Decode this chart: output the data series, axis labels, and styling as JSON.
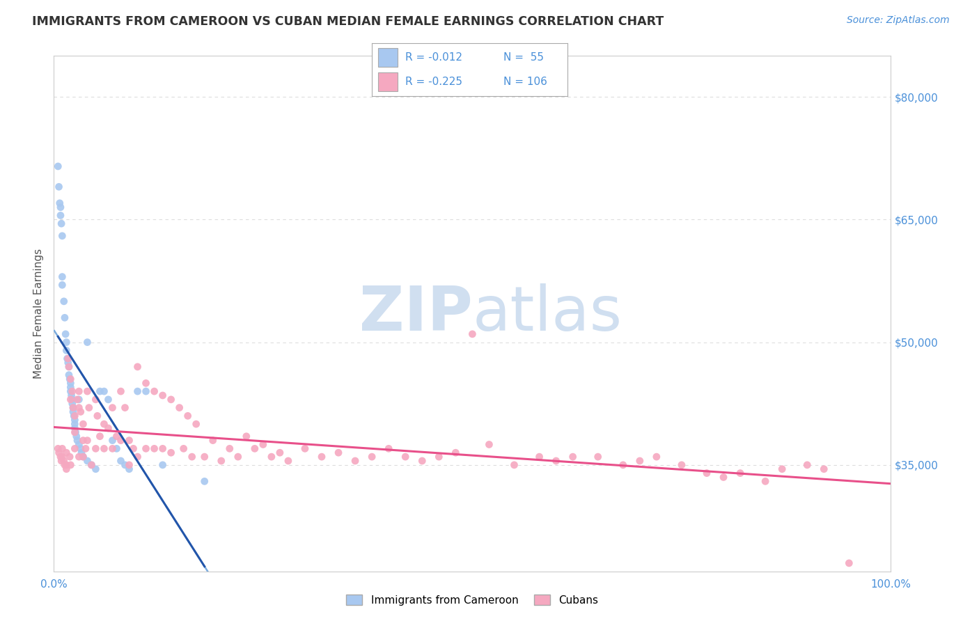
{
  "title": "IMMIGRANTS FROM CAMEROON VS CUBAN MEDIAN FEMALE EARNINGS CORRELATION CHART",
  "source": "Source: ZipAtlas.com",
  "ylabel": "Median Female Earnings",
  "xlim": [
    0,
    1.0
  ],
  "ylim": [
    22000,
    85000
  ],
  "yticks": [
    35000,
    50000,
    65000,
    80000
  ],
  "ytick_labels": [
    "$35,000",
    "$50,000",
    "$65,000",
    "$80,000"
  ],
  "xticks": [
    0,
    0.25,
    0.5,
    0.75,
    1.0
  ],
  "xtick_labels": [
    "0.0%",
    "",
    "",
    "",
    "100.0%"
  ],
  "legend_R1": "R = -0.012",
  "legend_N1": "N =  55",
  "legend_R2": "R = -0.225",
  "legend_N2": "N = 106",
  "series1_label": "Immigrants from Cameroon",
  "series2_label": "Cubans",
  "series1_color": "#a8c8f0",
  "series2_color": "#f5a8c0",
  "series1_line_color": "#2255aa",
  "series2_line_color": "#e8508a",
  "dashed_line_color": "#7aabdd",
  "axis_label_color": "#4a90d9",
  "title_color": "#333333",
  "watermark_color": "#d0dff0",
  "background_color": "#ffffff",
  "grid_color": "#dddddd",
  "series1_x": [
    0.005,
    0.006,
    0.007,
    0.008,
    0.008,
    0.009,
    0.01,
    0.01,
    0.01,
    0.012,
    0.013,
    0.014,
    0.015,
    0.015,
    0.016,
    0.017,
    0.018,
    0.018,
    0.019,
    0.02,
    0.02,
    0.02,
    0.021,
    0.022,
    0.022,
    0.023,
    0.023,
    0.024,
    0.025,
    0.025,
    0.025,
    0.026,
    0.027,
    0.028,
    0.03,
    0.03,
    0.032,
    0.033,
    0.035,
    0.04,
    0.04,
    0.045,
    0.05,
    0.055,
    0.06,
    0.065,
    0.07,
    0.075,
    0.08,
    0.085,
    0.09,
    0.1,
    0.11,
    0.13,
    0.18
  ],
  "series1_y": [
    71500,
    69000,
    67000,
    66500,
    65500,
    64500,
    63000,
    58000,
    57000,
    55000,
    53000,
    51000,
    50000,
    49000,
    48000,
    47500,
    47000,
    46000,
    45500,
    45000,
    44500,
    44000,
    43500,
    43000,
    42500,
    42000,
    41500,
    41000,
    40500,
    40000,
    39500,
    39000,
    38500,
    38000,
    43000,
    37500,
    37000,
    36500,
    36000,
    35500,
    50000,
    35000,
    34500,
    44000,
    44000,
    43000,
    38000,
    37000,
    35500,
    35000,
    34500,
    44000,
    44000,
    35000,
    33000
  ],
  "series2_x": [
    0.005,
    0.006,
    0.008,
    0.009,
    0.01,
    0.01,
    0.012,
    0.013,
    0.015,
    0.015,
    0.015,
    0.017,
    0.018,
    0.019,
    0.02,
    0.02,
    0.02,
    0.022,
    0.023,
    0.025,
    0.025,
    0.025,
    0.028,
    0.03,
    0.03,
    0.03,
    0.032,
    0.035,
    0.035,
    0.035,
    0.038,
    0.04,
    0.04,
    0.042,
    0.045,
    0.05,
    0.05,
    0.052,
    0.055,
    0.06,
    0.06,
    0.065,
    0.07,
    0.07,
    0.075,
    0.08,
    0.08,
    0.085,
    0.09,
    0.09,
    0.095,
    0.1,
    0.1,
    0.11,
    0.11,
    0.12,
    0.12,
    0.13,
    0.13,
    0.14,
    0.14,
    0.15,
    0.155,
    0.16,
    0.165,
    0.17,
    0.18,
    0.19,
    0.2,
    0.21,
    0.22,
    0.23,
    0.24,
    0.25,
    0.26,
    0.27,
    0.28,
    0.3,
    0.32,
    0.34,
    0.36,
    0.38,
    0.4,
    0.42,
    0.44,
    0.46,
    0.48,
    0.5,
    0.52,
    0.55,
    0.58,
    0.6,
    0.62,
    0.65,
    0.68,
    0.7,
    0.72,
    0.75,
    0.78,
    0.8,
    0.82,
    0.85,
    0.87,
    0.9,
    0.92,
    0.95
  ],
  "series2_y": [
    37000,
    36500,
    36000,
    35500,
    37000,
    36000,
    35500,
    35000,
    36500,
    35000,
    34500,
    48000,
    47000,
    36000,
    45500,
    43000,
    35000,
    44000,
    42000,
    41000,
    39000,
    37000,
    43000,
    44000,
    42000,
    36000,
    41500,
    40000,
    38000,
    36000,
    37000,
    44000,
    38000,
    42000,
    35000,
    43000,
    37000,
    41000,
    38500,
    40000,
    37000,
    39500,
    42000,
    37000,
    38500,
    44000,
    38000,
    42000,
    38000,
    35000,
    37000,
    47000,
    36000,
    45000,
    37000,
    44000,
    37000,
    43500,
    37000,
    43000,
    36500,
    42000,
    37000,
    41000,
    36000,
    40000,
    36000,
    38000,
    35500,
    37000,
    36000,
    38500,
    37000,
    37500,
    36000,
    36500,
    35500,
    37000,
    36000,
    36500,
    35500,
    36000,
    37000,
    36000,
    35500,
    36000,
    36500,
    51000,
    37500,
    35000,
    36000,
    35500,
    36000,
    36000,
    35000,
    35500,
    36000,
    35000,
    34000,
    33500,
    34000,
    33000,
    34500,
    35000,
    34500,
    23000
  ]
}
